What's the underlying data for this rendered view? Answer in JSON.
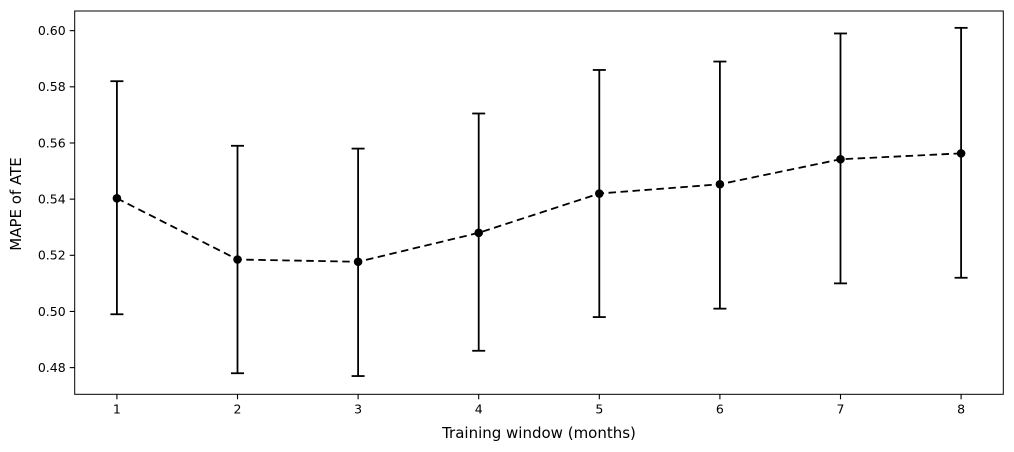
{
  "chart_data": {
    "type": "line",
    "subtype": "errorbar",
    "title": "",
    "xlabel": "Training window (months)",
    "ylabel": "MAPE of ATE",
    "x": [
      1,
      2,
      3,
      4,
      5,
      6,
      7,
      8
    ],
    "y": [
      0.5403,
      0.5185,
      0.5177,
      0.528,
      0.542,
      0.5453,
      0.5542,
      0.5563
    ],
    "yerr_low": [
      0.499,
      0.478,
      0.477,
      0.486,
      0.498,
      0.501,
      0.51,
      0.512
    ],
    "yerr_high": [
      0.582,
      0.559,
      0.558,
      0.5705,
      0.586,
      0.589,
      0.599,
      0.601
    ],
    "xticks": [
      1,
      2,
      3,
      4,
      5,
      6,
      7,
      8
    ],
    "yticks": [
      0.48,
      0.5,
      0.52,
      0.54,
      0.56,
      0.58,
      0.6
    ],
    "ytick_decimals": 2,
    "xlim": [
      0.65,
      8.35
    ],
    "ylim": [
      0.4705,
      0.607
    ],
    "line_style": "dashed",
    "marker": "circle",
    "series_color": "#000000",
    "axis_color": "#000000",
    "background_color": "#ffffff",
    "grid": false,
    "legend": null
  }
}
